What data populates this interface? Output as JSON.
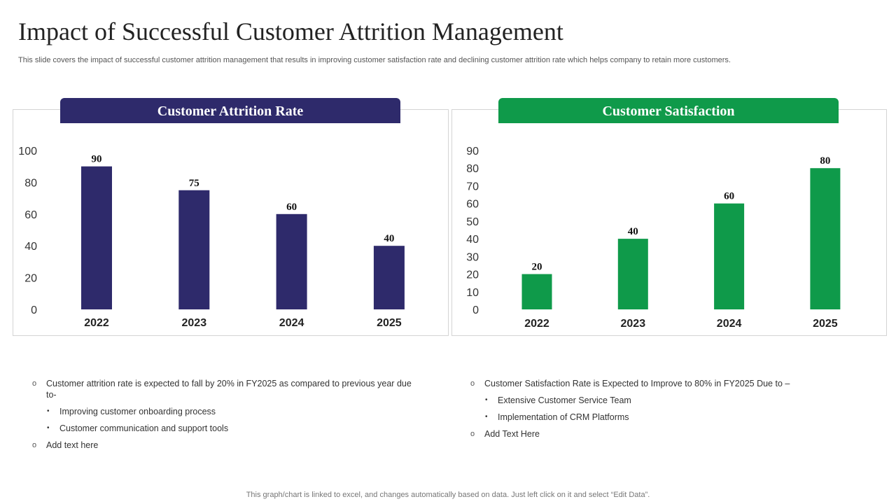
{
  "page": {
    "title": "Impact of Successful Customer Attrition Management",
    "subtitle": "This slide covers the impact of successful customer attrition management that results in improving customer satisfaction rate and declining customer attrition rate which helps company to retain more customers.",
    "footer": "This graph/chart is linked to excel,  and changes automatically based on data. Just left click on it and select “Edit Data”."
  },
  "chart_data": [
    {
      "type": "bar",
      "title": "Customer Attrition Rate",
      "categories": [
        "2022",
        "2023",
        "2024",
        "2025"
      ],
      "values": [
        90,
        75,
        60,
        40
      ],
      "yticks": [
        0,
        20,
        40,
        60,
        80,
        100
      ],
      "ylim": [
        0,
        100
      ],
      "color": "#2e2a6b",
      "xlabel": "",
      "ylabel": ""
    },
    {
      "type": "bar",
      "title": "Customer Satisfaction",
      "categories": [
        "2022",
        "2023",
        "2024",
        "2025"
      ],
      "values": [
        20,
        40,
        60,
        80
      ],
      "yticks": [
        0,
        10,
        20,
        30,
        40,
        50,
        60,
        70,
        80,
        90
      ],
      "ylim": [
        0,
        90
      ],
      "color": "#0f9a4a",
      "xlabel": "",
      "ylabel": ""
    }
  ],
  "notes_left": {
    "main": "Customer attrition rate is expected to fall by 20% in FY2025 as compared to previous year due to-",
    "subs": [
      "Improving  customer onboarding  process",
      "Customer communication and support tools"
    ],
    "extra": "Add text here"
  },
  "notes_right": {
    "main": "Customer Satisfaction Rate is Expected to Improve  to 80% in FY2025 Due to –",
    "subs": [
      "Extensive Customer Service Team",
      "Implementation of CRM Platforms"
    ],
    "extra": "Add Text Here"
  },
  "markers": {
    "circle": "o",
    "bullet": "•"
  }
}
